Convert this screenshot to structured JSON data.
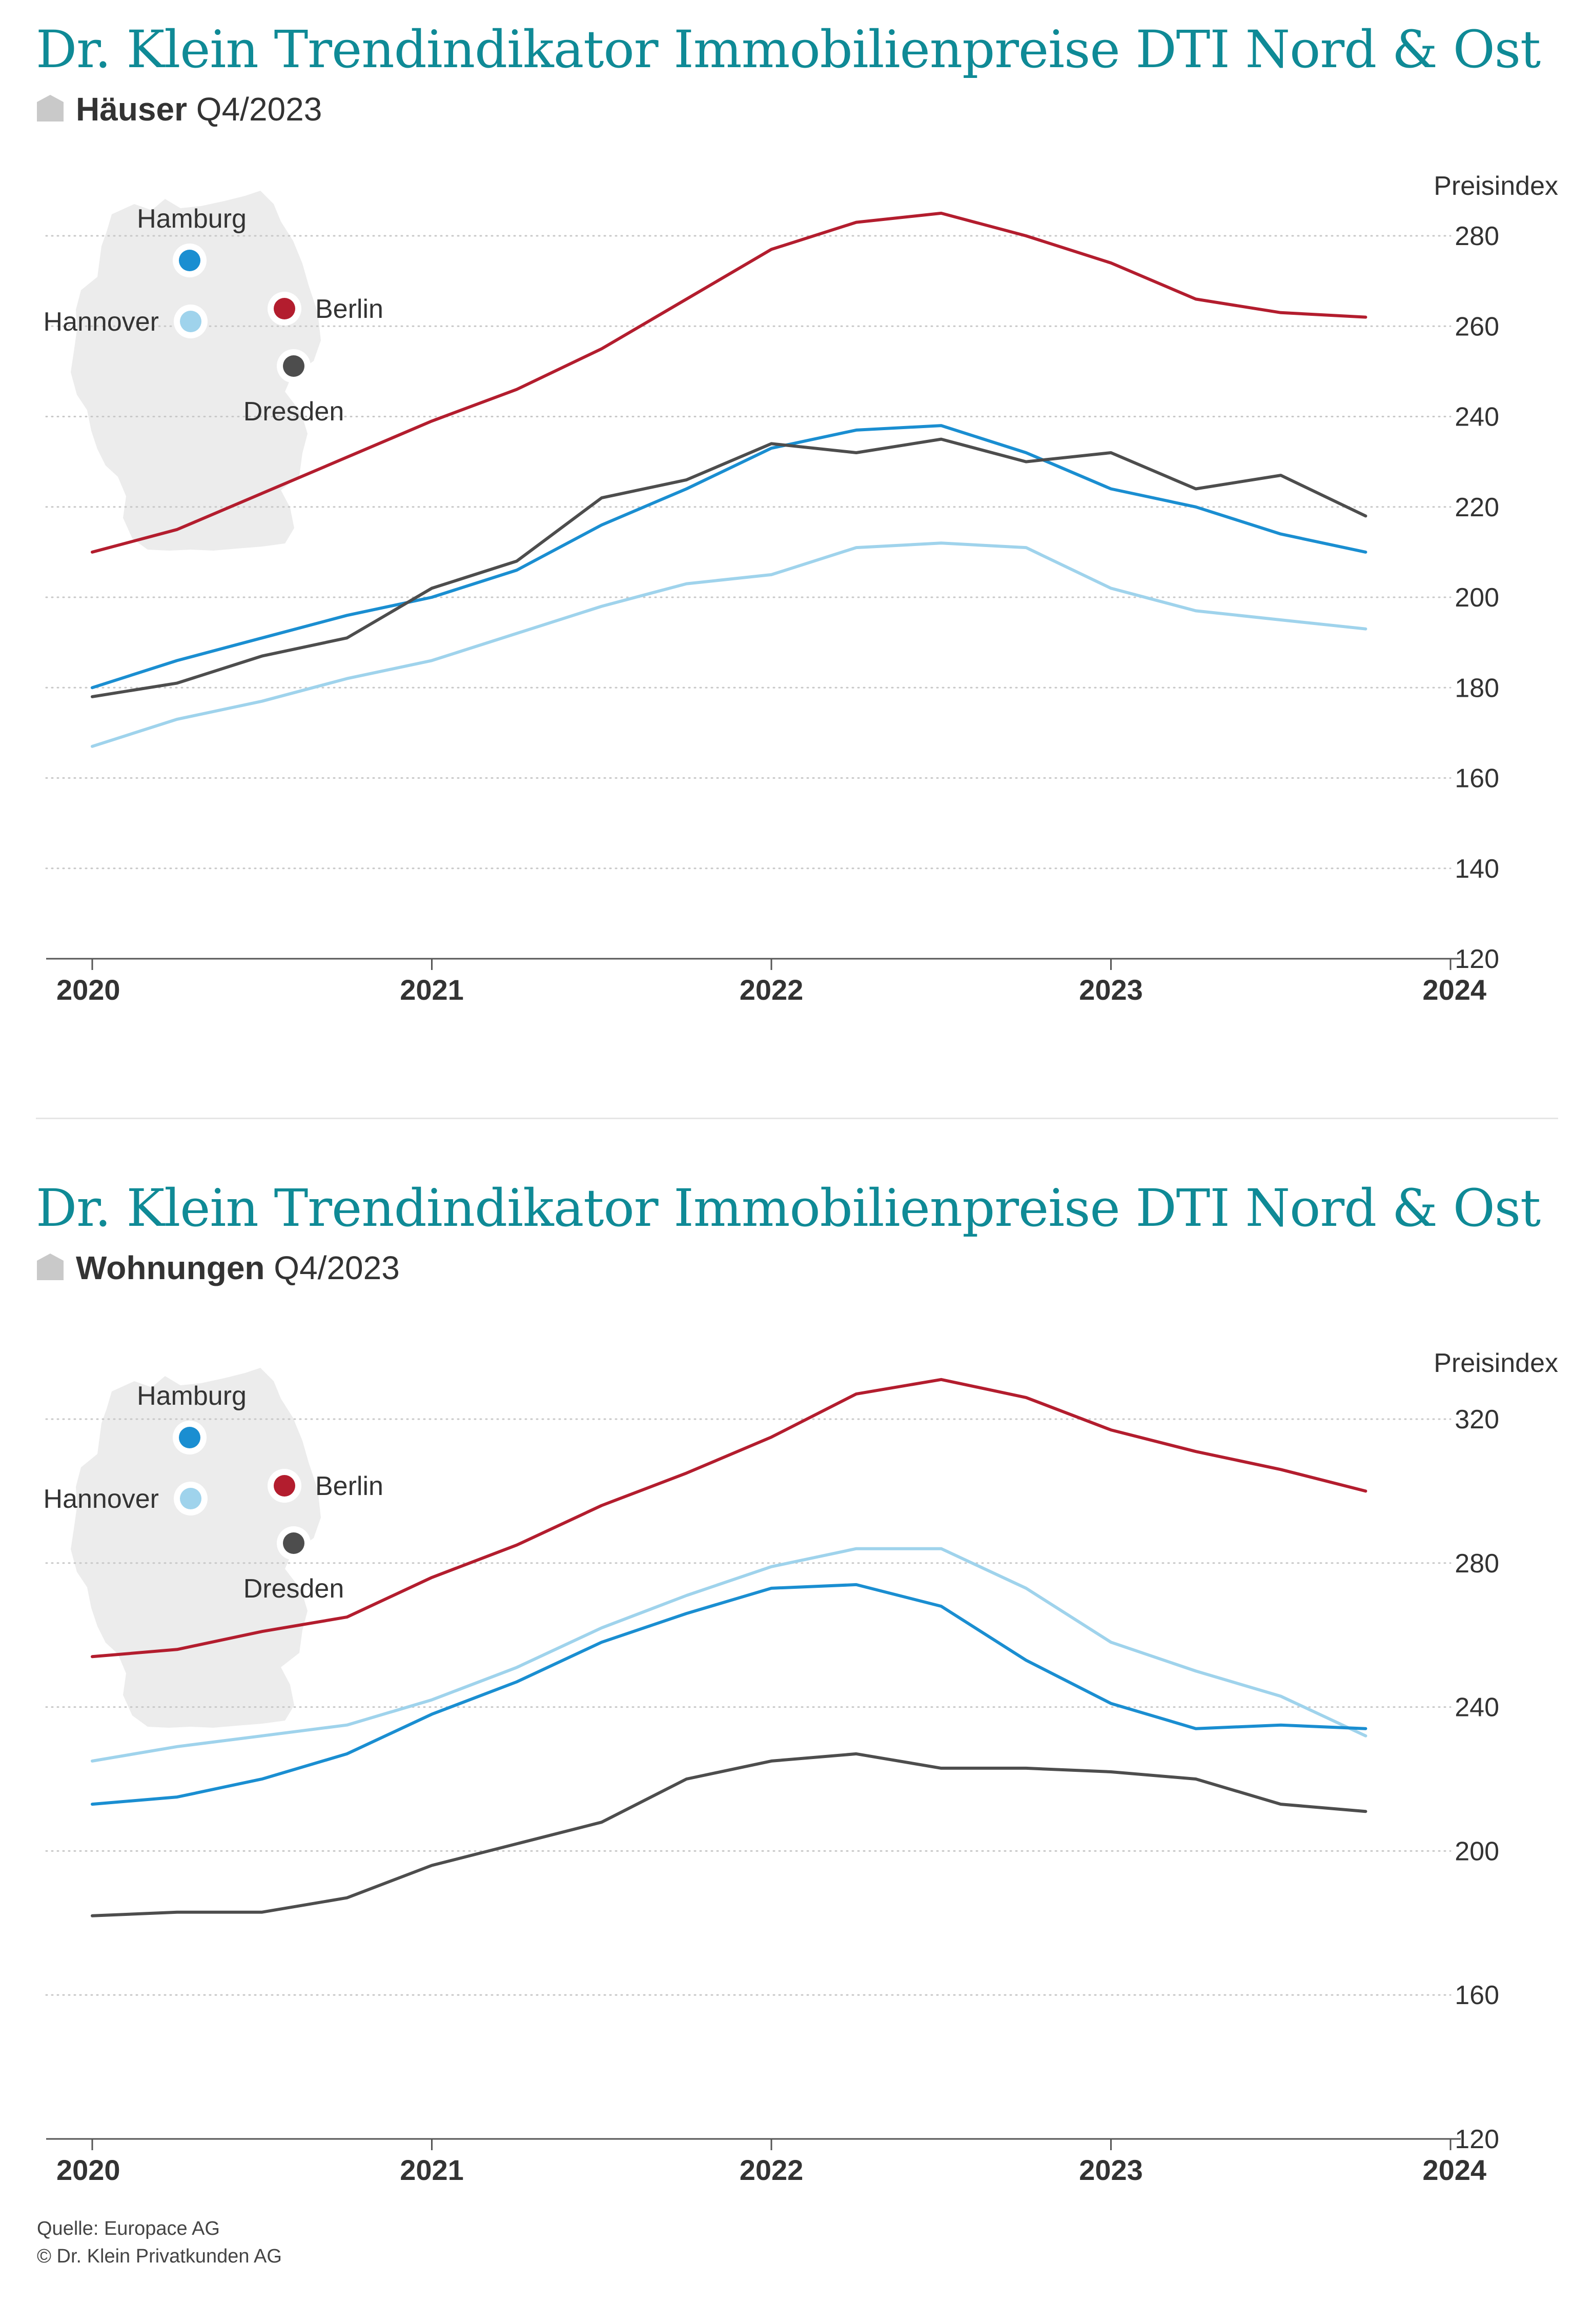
{
  "source_line": "Quelle: Europace AG",
  "copyright_line": "© Dr. Klein Privatkunden AG",
  "colors": {
    "title": "#0f8a96",
    "hamburg": "#1a8ed1",
    "hannover": "#9fd3ec",
    "berlin": "#b31d2e",
    "dresden": "#4d4d4d",
    "map": "#ececec",
    "grid": "#c8c8c8",
    "axis": "#555555"
  },
  "cities": [
    {
      "name": "Hamburg",
      "color": "#1a8ed1"
    },
    {
      "name": "Hannover",
      "color": "#9fd3ec"
    },
    {
      "name": "Berlin",
      "color": "#b31d2e"
    },
    {
      "name": "Dresden",
      "color": "#4d4d4d"
    }
  ],
  "chart_data": [
    {
      "type": "line",
      "title": "Dr. Klein Trendindikator Immobilienpreise DTI Nord & Ost",
      "subtitle_bold": "Häuser",
      "subtitle_period": "Q4/2023",
      "ylabel": "Preisindex",
      "ylim": [
        120,
        280
      ],
      "yticks": [
        120,
        140,
        160,
        180,
        200,
        220,
        240,
        260,
        280
      ],
      "xlim": [
        2020,
        2024
      ],
      "xticks": [
        "2020",
        "2021",
        "2022",
        "2023",
        "2024"
      ],
      "grid": true,
      "x": [
        2020.0,
        2020.25,
        2020.5,
        2020.75,
        2021.0,
        2021.25,
        2021.5,
        2021.75,
        2022.0,
        2022.25,
        2022.5,
        2022.75,
        2023.0,
        2023.25,
        2023.5,
        2023.75
      ],
      "series": [
        {
          "name": "Berlin",
          "color": "#b31d2e",
          "values": [
            210,
            215,
            223,
            231,
            239,
            246,
            255,
            266,
            277,
            283,
            285,
            280,
            274,
            266,
            263,
            262
          ]
        },
        {
          "name": "Hamburg",
          "color": "#1a8ed1",
          "values": [
            180,
            186,
            191,
            196,
            200,
            206,
            216,
            224,
            233,
            237,
            238,
            232,
            224,
            220,
            214,
            210
          ]
        },
        {
          "name": "Dresden",
          "color": "#4d4d4d",
          "values": [
            178,
            181,
            187,
            191,
            202,
            208,
            222,
            226,
            234,
            232,
            235,
            230,
            232,
            224,
            227,
            218
          ]
        },
        {
          "name": "Hannover",
          "color": "#9fd3ec",
          "values": [
            167,
            173,
            177,
            182,
            186,
            192,
            198,
            203,
            205,
            211,
            212,
            211,
            202,
            197,
            195,
            193
          ]
        }
      ]
    },
    {
      "type": "line",
      "title": "Dr. Klein Trendindikator Immobilienpreise DTI Nord & Ost",
      "subtitle_bold": "Wohnungen",
      "subtitle_period": "Q4/2023",
      "ylabel": "Preisindex",
      "ylim": [
        120,
        320
      ],
      "yticks": [
        120,
        160,
        200,
        240,
        280,
        320
      ],
      "xlim": [
        2020,
        2024
      ],
      "xticks": [
        "2020",
        "2021",
        "2022",
        "2023",
        "2024"
      ],
      "grid": true,
      "x": [
        2020.0,
        2020.25,
        2020.5,
        2020.75,
        2021.0,
        2021.25,
        2021.5,
        2021.75,
        2022.0,
        2022.25,
        2022.5,
        2022.75,
        2023.0,
        2023.25,
        2023.5,
        2023.75
      ],
      "series": [
        {
          "name": "Berlin",
          "color": "#b31d2e",
          "values": [
            254,
            256,
            261,
            265,
            276,
            285,
            296,
            305,
            315,
            327,
            331,
            326,
            317,
            311,
            306,
            300
          ]
        },
        {
          "name": "Hannover",
          "color": "#9fd3ec",
          "values": [
            225,
            229,
            232,
            235,
            242,
            251,
            262,
            271,
            279,
            284,
            284,
            273,
            258,
            250,
            243,
            232
          ]
        },
        {
          "name": "Hamburg",
          "color": "#1a8ed1",
          "values": [
            213,
            215,
            220,
            227,
            238,
            247,
            258,
            266,
            273,
            274,
            268,
            253,
            241,
            234,
            235,
            234
          ]
        },
        {
          "name": "Dresden",
          "color": "#4d4d4d",
          "values": [
            182,
            183,
            183,
            187,
            196,
            202,
            208,
            220,
            225,
            227,
            223,
            223,
            222,
            220,
            213,
            211
          ]
        }
      ]
    }
  ]
}
